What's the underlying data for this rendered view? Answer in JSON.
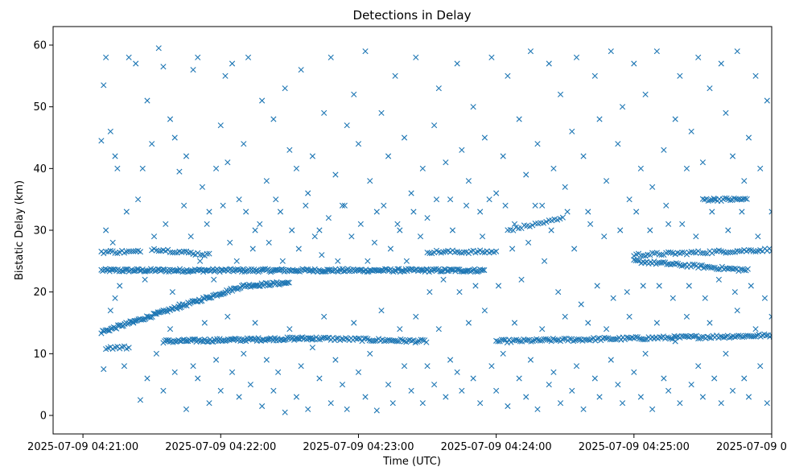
{
  "chart_data": {
    "type": "scatter",
    "title": "Detections in Delay",
    "xlabel": "Time (UTC)",
    "ylabel": "Bistatic Delay (km)",
    "marker": "x",
    "color": "#1f77b4",
    "x_unit": "seconds after 2025-07-09 04:21:00",
    "xlim": [
      -13,
      300
    ],
    "ylim": [
      -3,
      63
    ],
    "x_ticks": [
      {
        "value": 0,
        "label": "2025-07-09 04:21:00"
      },
      {
        "value": 60,
        "label": "2025-07-09 04:22:00"
      },
      {
        "value": 120,
        "label": "2025-07-09 04:23:00"
      },
      {
        "value": 180,
        "label": "2025-07-09 04:24:00"
      },
      {
        "value": 240,
        "label": "2025-07-09 04:25:00"
      },
      {
        "value": 300,
        "label": "2025-07-09 04:26:00"
      }
    ],
    "y_ticks": [
      {
        "value": 0,
        "label": "0"
      },
      {
        "value": 10,
        "label": "10"
      },
      {
        "value": 20,
        "label": "20"
      },
      {
        "value": 30,
        "label": "30"
      },
      {
        "value": 40,
        "label": "40"
      },
      {
        "value": 50,
        "label": "50"
      },
      {
        "value": 60,
        "label": "60"
      }
    ],
    "grid": false,
    "x_range_of_detections": [
      8,
      310
    ],
    "tracks": [
      {
        "name": "constant ~23.5 km track",
        "x": [
          8,
          175
        ],
        "y": [
          23.5,
          23.5
        ],
        "step": 0.6
      },
      {
        "name": "rising track",
        "x": [
          8,
          70
        ],
        "y": [
          13.5,
          21
        ],
        "step": 0.6
      },
      {
        "name": "upper bistatic track",
        "x": [
          70,
          90
        ],
        "y": [
          21,
          21.5
        ],
        "step": 0.6
      },
      {
        "name": "~12 km track segment A",
        "x": [
          35,
          100
        ],
        "y": [
          12,
          12.5
        ],
        "step": 0.6
      },
      {
        "name": "~12 km track segment B",
        "x": [
          100,
          150
        ],
        "y": [
          12.5,
          12
        ],
        "step": 0.8
      },
      {
        "name": "~12 km track segment C",
        "x": [
          180,
          305
        ],
        "y": [
          12,
          13
        ],
        "step": 0.8
      },
      {
        "name": "~11 km lower track",
        "x": [
          10,
          20
        ],
        "y": [
          11,
          11
        ],
        "step": 1
      },
      {
        "name": "~26 km track A",
        "x": [
          8,
          25
        ],
        "y": [
          26.5,
          26.5
        ],
        "step": 1
      },
      {
        "name": "~26 km track B",
        "x": [
          30,
          55
        ],
        "y": [
          27,
          26
        ],
        "step": 1
      },
      {
        "name": "~26 km track C",
        "x": [
          150,
          180
        ],
        "y": [
          26.5,
          26.5
        ],
        "step": 1
      },
      {
        "name": "~26 km track D",
        "x": [
          240,
          310
        ],
        "y": [
          26,
          27
        ],
        "step": 1
      },
      {
        "name": "~24 km track late",
        "x": [
          240,
          290
        ],
        "y": [
          25,
          23.5
        ],
        "step": 0.8
      },
      {
        "name": "~35 km track",
        "x": [
          270,
          290
        ],
        "y": [
          35,
          35
        ],
        "step": 0.8
      },
      {
        "name": "~32 km drifting",
        "x": [
          185,
          210
        ],
        "y": [
          30,
          32
        ],
        "step": 1.2
      }
    ],
    "scatter_points": [
      [
        8,
        44.5
      ],
      [
        9,
        53.5
      ],
      [
        10,
        58
      ],
      [
        12,
        46
      ],
      [
        14,
        42
      ],
      [
        15,
        40
      ],
      [
        20,
        58
      ],
      [
        23,
        57
      ],
      [
        26,
        40
      ],
      [
        28,
        51
      ],
      [
        30,
        44
      ],
      [
        33,
        59.5
      ],
      [
        35,
        56.5
      ],
      [
        38,
        48
      ],
      [
        40,
        45
      ],
      [
        42,
        39.5
      ],
      [
        45,
        42
      ],
      [
        48,
        56
      ],
      [
        50,
        58
      ],
      [
        52,
        37
      ],
      [
        55,
        33
      ],
      [
        58,
        40
      ],
      [
        60,
        47
      ],
      [
        62,
        55
      ],
      [
        63,
        41
      ],
      [
        65,
        57
      ],
      [
        68,
        35
      ],
      [
        70,
        44
      ],
      [
        72,
        58
      ],
      [
        75,
        30
      ],
      [
        78,
        51
      ],
      [
        80,
        38
      ],
      [
        83,
        48
      ],
      [
        86,
        33
      ],
      [
        88,
        53
      ],
      [
        90,
        43
      ],
      [
        93,
        40
      ],
      [
        95,
        56
      ],
      [
        98,
        36
      ],
      [
        100,
        42
      ],
      [
        103,
        30
      ],
      [
        105,
        49
      ],
      [
        108,
        58
      ],
      [
        110,
        39
      ],
      [
        113,
        34
      ],
      [
        115,
        47
      ],
      [
        118,
        52
      ],
      [
        120,
        44
      ],
      [
        123,
        59
      ],
      [
        125,
        38
      ],
      [
        128,
        33
      ],
      [
        130,
        49
      ],
      [
        133,
        42
      ],
      [
        136,
        55
      ],
      [
        138,
        30
      ],
      [
        140,
        45
      ],
      [
        143,
        36
      ],
      [
        145,
        58
      ],
      [
        148,
        40
      ],
      [
        150,
        32
      ],
      [
        153,
        47
      ],
      [
        155,
        53
      ],
      [
        158,
        41
      ],
      [
        160,
        35
      ],
      [
        163,
        57
      ],
      [
        165,
        43
      ],
      [
        168,
        38
      ],
      [
        170,
        50
      ],
      [
        173,
        33
      ],
      [
        175,
        45
      ],
      [
        178,
        58
      ],
      [
        180,
        36
      ],
      [
        183,
        42
      ],
      [
        185,
        55
      ],
      [
        188,
        31
      ],
      [
        190,
        48
      ],
      [
        193,
        39
      ],
      [
        195,
        59
      ],
      [
        198,
        44
      ],
      [
        200,
        34
      ],
      [
        203,
        57
      ],
      [
        205,
        40
      ],
      [
        208,
        52
      ],
      [
        210,
        37
      ],
      [
        213,
        46
      ],
      [
        215,
        58
      ],
      [
        218,
        42
      ],
      [
        220,
        33
      ],
      [
        223,
        55
      ],
      [
        225,
        48
      ],
      [
        228,
        38
      ],
      [
        230,
        59
      ],
      [
        233,
        44
      ],
      [
        235,
        50
      ],
      [
        238,
        35
      ],
      [
        240,
        57
      ],
      [
        243,
        40
      ],
      [
        245,
        52
      ],
      [
        248,
        37
      ],
      [
        250,
        59
      ],
      [
        253,
        43
      ],
      [
        255,
        31
      ],
      [
        258,
        48
      ],
      [
        260,
        55
      ],
      [
        263,
        40
      ],
      [
        265,
        46
      ],
      [
        268,
        58
      ],
      [
        270,
        41
      ],
      [
        273,
        53
      ],
      [
        275,
        35
      ],
      [
        278,
        57
      ],
      [
        280,
        49
      ],
      [
        283,
        42
      ],
      [
        285,
        59
      ],
      [
        288,
        38
      ],
      [
        290,
        45
      ],
      [
        293,
        55
      ],
      [
        295,
        40
      ],
      [
        298,
        51
      ],
      [
        300,
        33
      ],
      [
        303,
        58
      ],
      [
        305,
        43
      ],
      [
        308,
        57
      ],
      [
        309,
        37
      ],
      [
        9,
        7.5
      ],
      [
        12,
        17
      ],
      [
        14,
        19
      ],
      [
        18,
        8
      ],
      [
        22,
        15
      ],
      [
        25,
        2.5
      ],
      [
        28,
        6
      ],
      [
        32,
        10
      ],
      [
        35,
        4
      ],
      [
        38,
        14
      ],
      [
        40,
        7
      ],
      [
        42,
        18
      ],
      [
        45,
        1
      ],
      [
        48,
        8
      ],
      [
        50,
        6
      ],
      [
        53,
        15
      ],
      [
        55,
        2
      ],
      [
        58,
        9
      ],
      [
        60,
        4
      ],
      [
        63,
        16
      ],
      [
        65,
        7
      ],
      [
        68,
        3
      ],
      [
        70,
        10
      ],
      [
        73,
        5
      ],
      [
        75,
        15
      ],
      [
        78,
        1.5
      ],
      [
        80,
        9
      ],
      [
        83,
        4
      ],
      [
        85,
        7
      ],
      [
        88,
        0.5
      ],
      [
        90,
        14
      ],
      [
        93,
        3
      ],
      [
        95,
        8
      ],
      [
        98,
        1
      ],
      [
        100,
        11
      ],
      [
        103,
        6
      ],
      [
        105,
        16
      ],
      [
        108,
        2
      ],
      [
        110,
        9
      ],
      [
        113,
        5
      ],
      [
        115,
        1
      ],
      [
        118,
        15
      ],
      [
        120,
        7
      ],
      [
        123,
        3
      ],
      [
        125,
        10
      ],
      [
        128,
        0.8
      ],
      [
        130,
        17
      ],
      [
        133,
        5
      ],
      [
        135,
        2
      ],
      [
        138,
        14
      ],
      [
        140,
        8
      ],
      [
        143,
        4
      ],
      [
        145,
        16
      ],
      [
        148,
        2
      ],
      [
        150,
        8
      ],
      [
        153,
        5
      ],
      [
        155,
        14
      ],
      [
        158,
        3
      ],
      [
        160,
        9
      ],
      [
        163,
        7
      ],
      [
        165,
        4
      ],
      [
        168,
        15
      ],
      [
        170,
        6
      ],
      [
        173,
        2
      ],
      [
        175,
        17
      ],
      [
        178,
        8
      ],
      [
        180,
        4
      ],
      [
        183,
        10
      ],
      [
        185,
        1.5
      ],
      [
        188,
        15
      ],
      [
        190,
        6
      ],
      [
        193,
        3
      ],
      [
        195,
        9
      ],
      [
        198,
        1
      ],
      [
        200,
        14
      ],
      [
        203,
        5
      ],
      [
        205,
        7
      ],
      [
        208,
        2
      ],
      [
        210,
        16
      ],
      [
        213,
        4
      ],
      [
        215,
        8
      ],
      [
        218,
        1
      ],
      [
        220,
        15
      ],
      [
        223,
        6
      ],
      [
        225,
        3
      ],
      [
        228,
        14
      ],
      [
        230,
        9
      ],
      [
        233,
        5
      ],
      [
        235,
        2
      ],
      [
        238,
        16
      ],
      [
        240,
        7
      ],
      [
        243,
        3
      ],
      [
        245,
        10
      ],
      [
        248,
        1
      ],
      [
        250,
        15
      ],
      [
        253,
        6
      ],
      [
        255,
        4
      ],
      [
        258,
        12
      ],
      [
        260,
        2
      ],
      [
        263,
        16
      ],
      [
        265,
        5
      ],
      [
        268,
        8
      ],
      [
        270,
        3
      ],
      [
        273,
        15
      ],
      [
        275,
        6
      ],
      [
        278,
        2
      ],
      [
        280,
        10
      ],
      [
        283,
        4
      ],
      [
        285,
        17
      ],
      [
        288,
        6
      ],
      [
        290,
        3
      ],
      [
        293,
        14
      ],
      [
        295,
        8
      ],
      [
        298,
        2
      ],
      [
        300,
        16
      ],
      [
        303,
        5
      ],
      [
        305,
        9
      ],
      [
        308,
        4.5
      ],
      [
        309,
        18
      ],
      [
        307,
        11
      ],
      [
        10,
        30
      ],
      [
        13,
        28
      ],
      [
        16,
        21
      ],
      [
        19,
        33
      ],
      [
        24,
        35
      ],
      [
        27,
        22
      ],
      [
        31,
        29
      ],
      [
        36,
        31
      ],
      [
        39,
        20
      ],
      [
        44,
        34
      ],
      [
        47,
        29
      ],
      [
        51,
        25
      ],
      [
        54,
        31
      ],
      [
        57,
        22
      ],
      [
        61,
        34
      ],
      [
        64,
        28
      ],
      [
        67,
        25
      ],
      [
        71,
        33
      ],
      [
        74,
        27
      ],
      [
        77,
        31
      ],
      [
        81,
        28
      ],
      [
        84,
        35
      ],
      [
        87,
        25
      ],
      [
        91,
        30
      ],
      [
        94,
        27
      ],
      [
        97,
        34
      ],
      [
        101,
        29
      ],
      [
        104,
        26
      ],
      [
        107,
        32
      ],
      [
        111,
        25
      ],
      [
        114,
        34
      ],
      [
        117,
        29
      ],
      [
        121,
        31
      ],
      [
        124,
        25
      ],
      [
        127,
        28
      ],
      [
        131,
        34
      ],
      [
        134,
        27
      ],
      [
        137,
        31
      ],
      [
        141,
        25
      ],
      [
        144,
        33
      ],
      [
        147,
        29
      ],
      [
        151,
        20
      ],
      [
        154,
        35
      ],
      [
        157,
        22
      ],
      [
        161,
        30
      ],
      [
        164,
        20
      ],
      [
        167,
        34
      ],
      [
        171,
        21
      ],
      [
        174,
        29
      ],
      [
        177,
        35
      ],
      [
        181,
        21
      ],
      [
        184,
        34
      ],
      [
        187,
        27
      ],
      [
        191,
        22
      ],
      [
        194,
        28
      ],
      [
        197,
        34
      ],
      [
        201,
        25
      ],
      [
        204,
        30
      ],
      [
        207,
        20
      ],
      [
        211,
        33
      ],
      [
        214,
        27
      ],
      [
        217,
        18
      ],
      [
        221,
        31
      ],
      [
        224,
        21
      ],
      [
        227,
        29
      ],
      [
        231,
        19
      ],
      [
        234,
        30
      ],
      [
        237,
        20
      ],
      [
        241,
        33
      ],
      [
        244,
        21
      ],
      [
        247,
        30
      ],
      [
        251,
        21
      ],
      [
        254,
        34
      ],
      [
        257,
        19
      ],
      [
        261,
        31
      ],
      [
        264,
        21
      ],
      [
        267,
        29
      ],
      [
        271,
        19
      ],
      [
        274,
        33
      ],
      [
        277,
        22
      ],
      [
        281,
        30
      ],
      [
        284,
        20
      ],
      [
        287,
        33
      ],
      [
        291,
        21
      ],
      [
        294,
        29
      ],
      [
        297,
        19
      ],
      [
        301,
        33
      ],
      [
        304,
        20
      ],
      [
        306,
        31
      ],
      [
        309,
        22
      ]
    ]
  }
}
